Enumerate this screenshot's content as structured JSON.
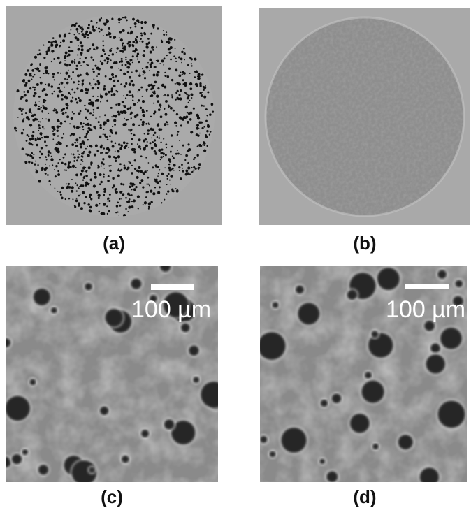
{
  "panels": [
    {
      "label": "(a)"
    },
    {
      "label": "(b)"
    },
    {
      "label": "(c)",
      "scale_bar": "100 µm"
    },
    {
      "label": "(d)",
      "scale_bar": "100 µm"
    }
  ]
}
